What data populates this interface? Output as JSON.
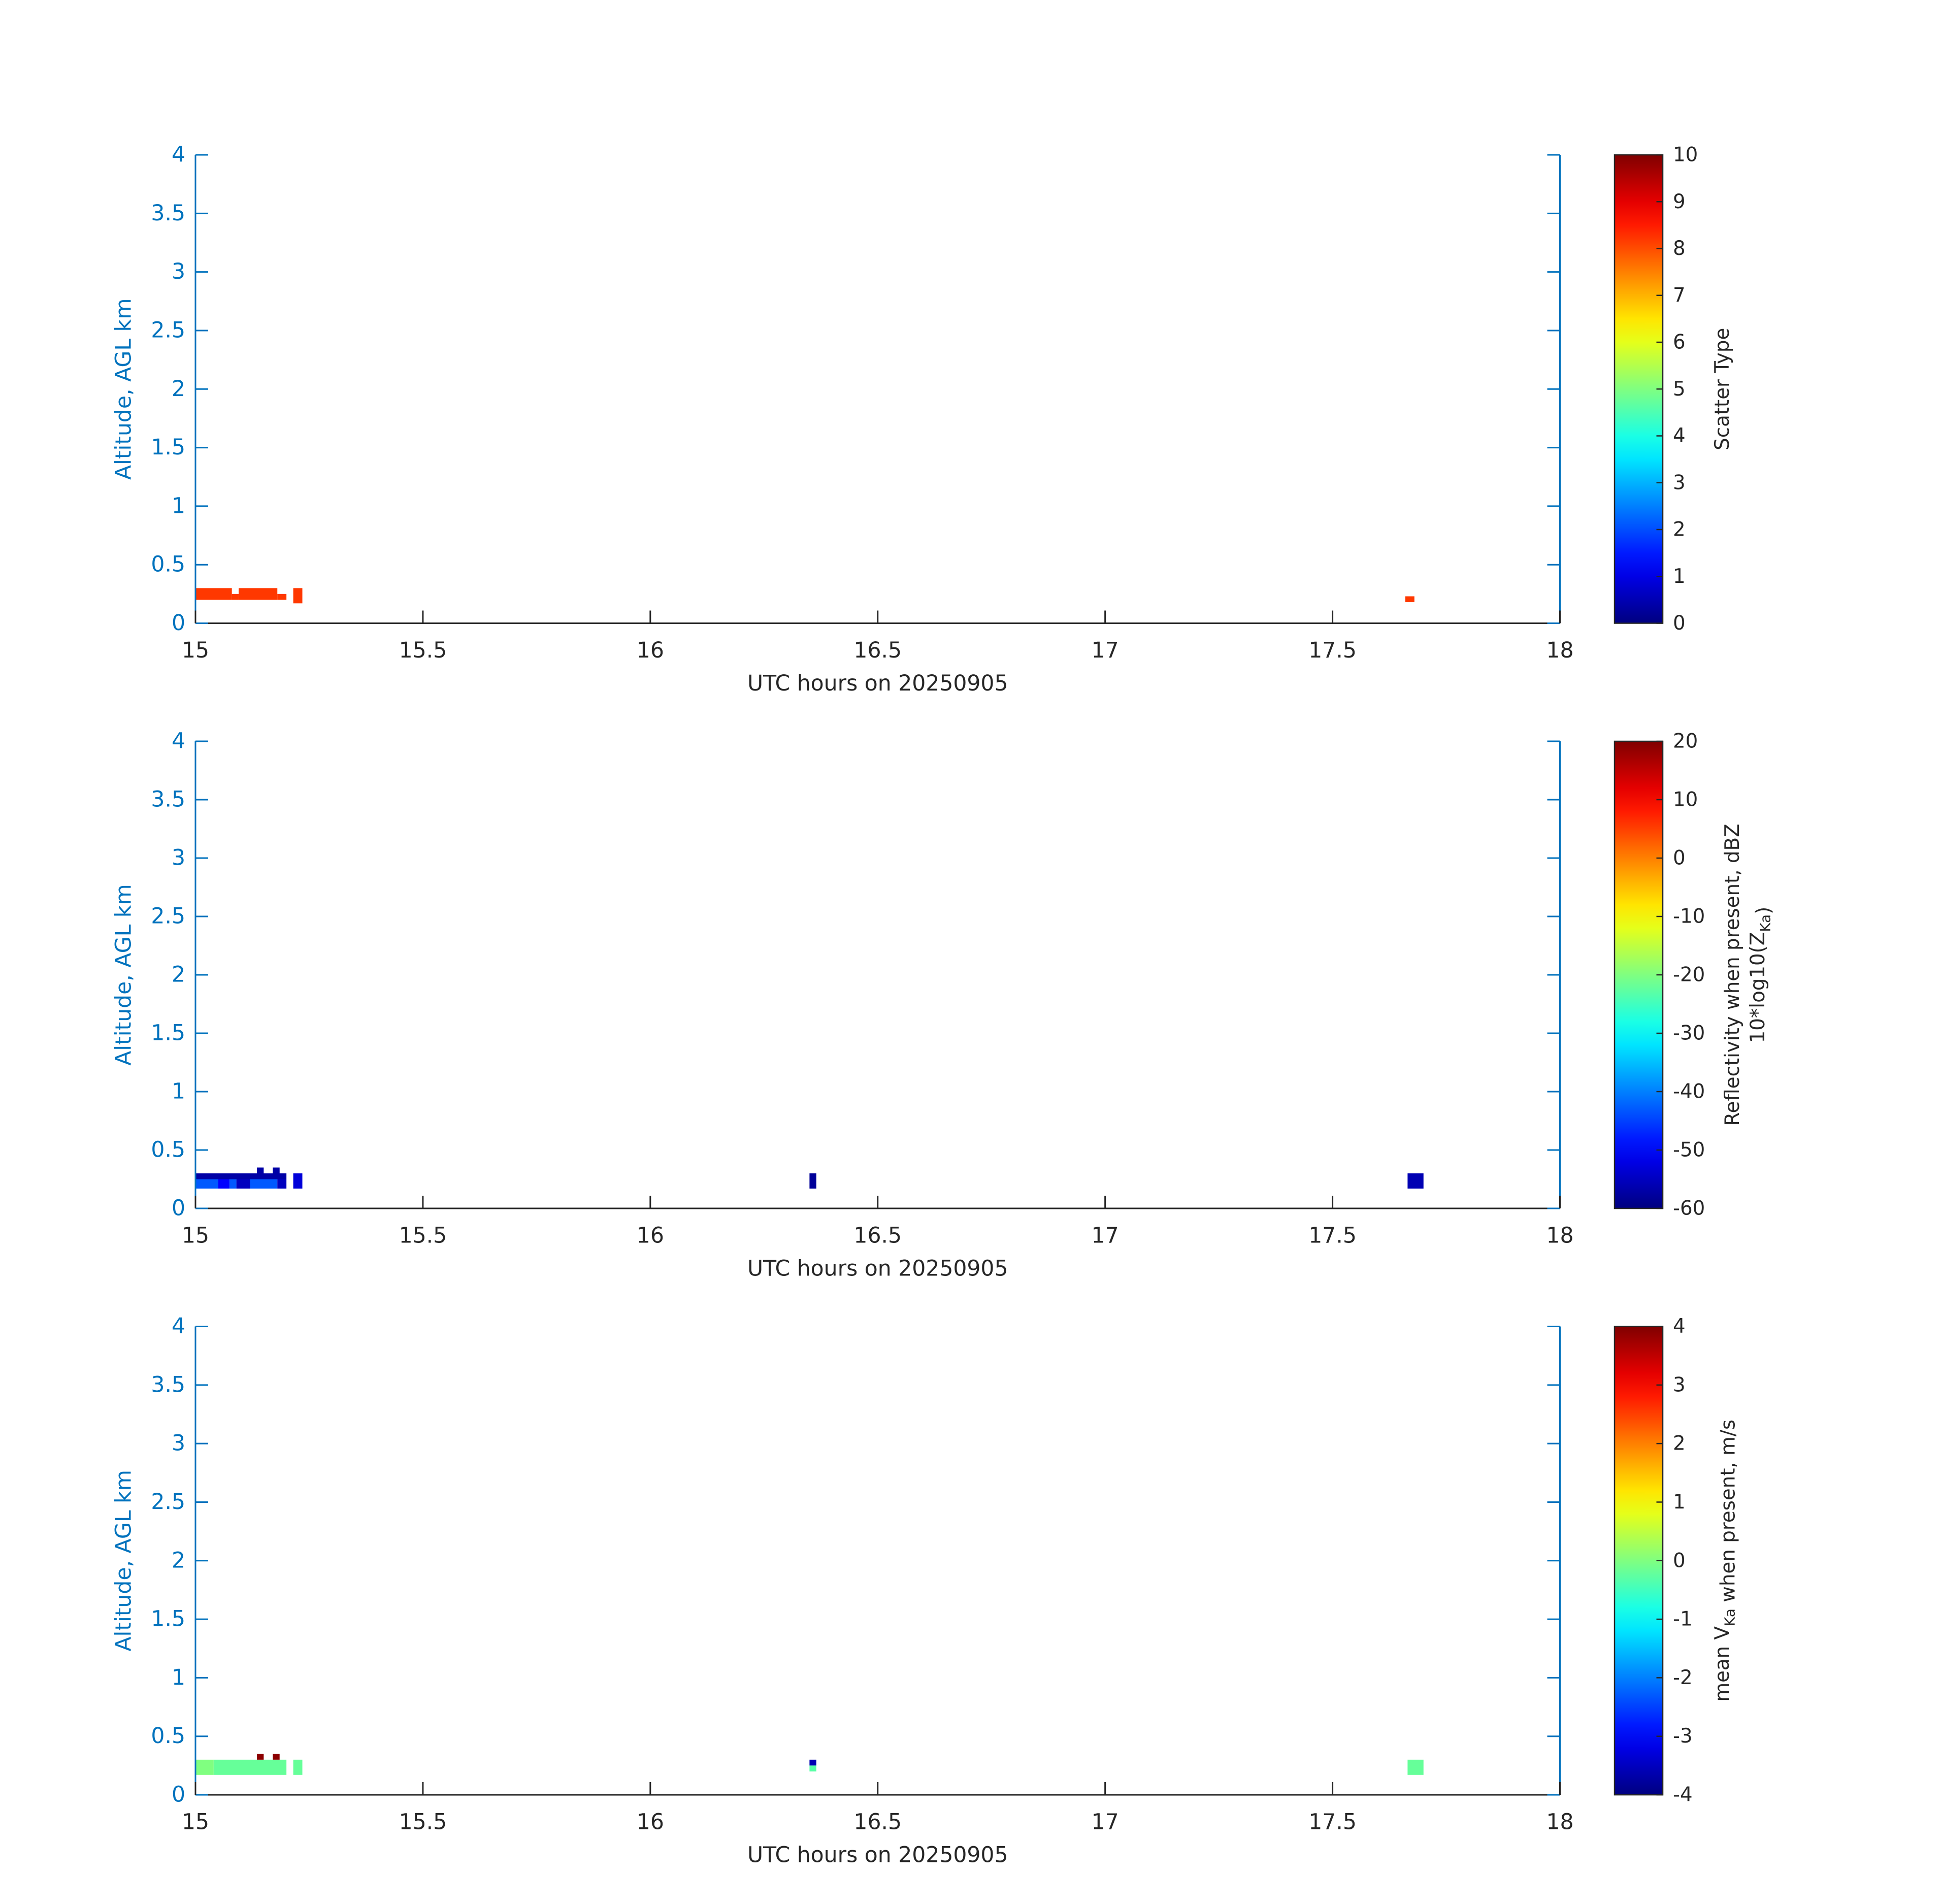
{
  "chart_data": [
    {
      "type": "heatmap",
      "title": "",
      "xlabel": "UTC hours on 20250905",
      "ylabel": "Altitude, AGL km",
      "xlim": [
        15,
        18
      ],
      "ylim": [
        0,
        4
      ],
      "xticks": [
        "15",
        "15.5",
        "16",
        "16.5",
        "17",
        "17.5",
        "18"
      ],
      "yticks": [
        "0",
        "0.5",
        "1",
        "1.5",
        "2",
        "2.5",
        "3",
        "3.5",
        "4"
      ],
      "grid": false,
      "colorbar": {
        "label_parts": [
          {
            "text": "Scatter Type"
          }
        ],
        "label_line2": [],
        "range": [
          0,
          10
        ],
        "ticks": [
          "0",
          "1",
          "2",
          "3",
          "4",
          "5",
          "6",
          "7",
          "8",
          "9",
          "10"
        ]
      },
      "cells": [
        {
          "t0": 15.0,
          "t1": 15.08,
          "z0": 0.2,
          "z1": 0.3,
          "v": 8.2
        },
        {
          "t0": 15.08,
          "t1": 15.095,
          "z0": 0.2,
          "z1": 0.25,
          "v": 8.2
        },
        {
          "t0": 15.095,
          "t1": 15.18,
          "z0": 0.2,
          "z1": 0.3,
          "v": 8.2
        },
        {
          "t0": 15.18,
          "t1": 15.2,
          "z0": 0.2,
          "z1": 0.25,
          "v": 8.2
        },
        {
          "t0": 15.215,
          "t1": 15.235,
          "z0": 0.17,
          "z1": 0.3,
          "v": 8.2
        },
        {
          "t0": 17.66,
          "t1": 17.68,
          "z0": 0.18,
          "z1": 0.23,
          "v": 8.2
        }
      ]
    },
    {
      "type": "heatmap",
      "title": "",
      "xlabel": "UTC hours on 20250905",
      "ylabel": "Altitude, AGL km",
      "xlim": [
        15,
        18
      ],
      "ylim": [
        0,
        4
      ],
      "xticks": [
        "15",
        "15.5",
        "16",
        "16.5",
        "17",
        "17.5",
        "18"
      ],
      "yticks": [
        "0",
        "0.5",
        "1",
        "1.5",
        "2",
        "2.5",
        "3",
        "3.5",
        "4"
      ],
      "grid": false,
      "colorbar": {
        "label_parts": [
          {
            "text": "Reflectivity when present, dBZ"
          }
        ],
        "label_line2": [
          {
            "text": "10*log10(Z"
          },
          {
            "text": "Ka",
            "sub": true
          },
          {
            "text": ")"
          }
        ],
        "range": [
          -60,
          20
        ],
        "ticks": [
          "-60",
          "-50",
          "-40",
          "-30",
          "-20",
          "-10",
          "0",
          "10",
          "20"
        ]
      },
      "cells": [
        {
          "t0": 15.0,
          "t1": 15.2,
          "z0": 0.25,
          "z1": 0.3,
          "v": -57
        },
        {
          "t0": 15.0,
          "t1": 15.05,
          "z0": 0.17,
          "z1": 0.25,
          "v": -43
        },
        {
          "t0": 15.05,
          "t1": 15.075,
          "z0": 0.17,
          "z1": 0.25,
          "v": -50
        },
        {
          "t0": 15.075,
          "t1": 15.09,
          "z0": 0.17,
          "z1": 0.25,
          "v": -43
        },
        {
          "t0": 15.09,
          "t1": 15.12,
          "z0": 0.17,
          "z1": 0.25,
          "v": -55
        },
        {
          "t0": 15.12,
          "t1": 15.18,
          "z0": 0.17,
          "z1": 0.25,
          "v": -43
        },
        {
          "t0": 15.18,
          "t1": 15.2,
          "z0": 0.17,
          "z1": 0.25,
          "v": -55
        },
        {
          "t0": 15.135,
          "t1": 15.15,
          "z0": 0.3,
          "z1": 0.35,
          "v": -57
        },
        {
          "t0": 15.17,
          "t1": 15.185,
          "z0": 0.3,
          "z1": 0.35,
          "v": -57
        },
        {
          "t0": 15.215,
          "t1": 15.235,
          "z0": 0.17,
          "z1": 0.3,
          "v": -53
        },
        {
          "t0": 16.35,
          "t1": 16.365,
          "z0": 0.17,
          "z1": 0.3,
          "v": -58
        },
        {
          "t0": 17.665,
          "t1": 17.7,
          "z0": 0.17,
          "z1": 0.3,
          "v": -56
        }
      ]
    },
    {
      "type": "heatmap",
      "title": "",
      "xlabel": "UTC hours on 20250905",
      "ylabel": "Altitude, AGL km",
      "xlim": [
        15,
        18
      ],
      "ylim": [
        0,
        4
      ],
      "xticks": [
        "15",
        "15.5",
        "16",
        "16.5",
        "17",
        "17.5",
        "18"
      ],
      "yticks": [
        "0",
        "0.5",
        "1",
        "1.5",
        "2",
        "2.5",
        "3",
        "3.5",
        "4"
      ],
      "grid": false,
      "colorbar": {
        "label_parts": [
          {
            "text": "mean V"
          },
          {
            "text": "Ka",
            "sub": true
          },
          {
            "text": " when present, m/s"
          }
        ],
        "label_line2": [],
        "range": [
          -4,
          4
        ],
        "ticks": [
          "-4",
          "-3",
          "-2",
          "-1",
          "0",
          "1",
          "2",
          "3",
          "4"
        ]
      },
      "cells": [
        {
          "t0": 15.0,
          "t1": 15.04,
          "z0": 0.17,
          "z1": 0.3,
          "v": 0.0
        },
        {
          "t0": 15.04,
          "t1": 15.2,
          "z0": 0.17,
          "z1": 0.3,
          "v": -0.2
        },
        {
          "t0": 15.135,
          "t1": 15.15,
          "z0": 0.3,
          "z1": 0.35,
          "v": 3.9
        },
        {
          "t0": 15.17,
          "t1": 15.185,
          "z0": 0.3,
          "z1": 0.35,
          "v": 3.9
        },
        {
          "t0": 15.215,
          "t1": 15.235,
          "z0": 0.17,
          "z1": 0.3,
          "v": -0.2
        },
        {
          "t0": 16.35,
          "t1": 16.365,
          "z0": 0.25,
          "z1": 0.3,
          "v": -3.6
        },
        {
          "t0": 16.35,
          "t1": 16.365,
          "z0": 0.2,
          "z1": 0.25,
          "v": -0.3
        },
        {
          "t0": 17.665,
          "t1": 17.7,
          "z0": 0.17,
          "z1": 0.3,
          "v": -0.2
        }
      ]
    }
  ]
}
